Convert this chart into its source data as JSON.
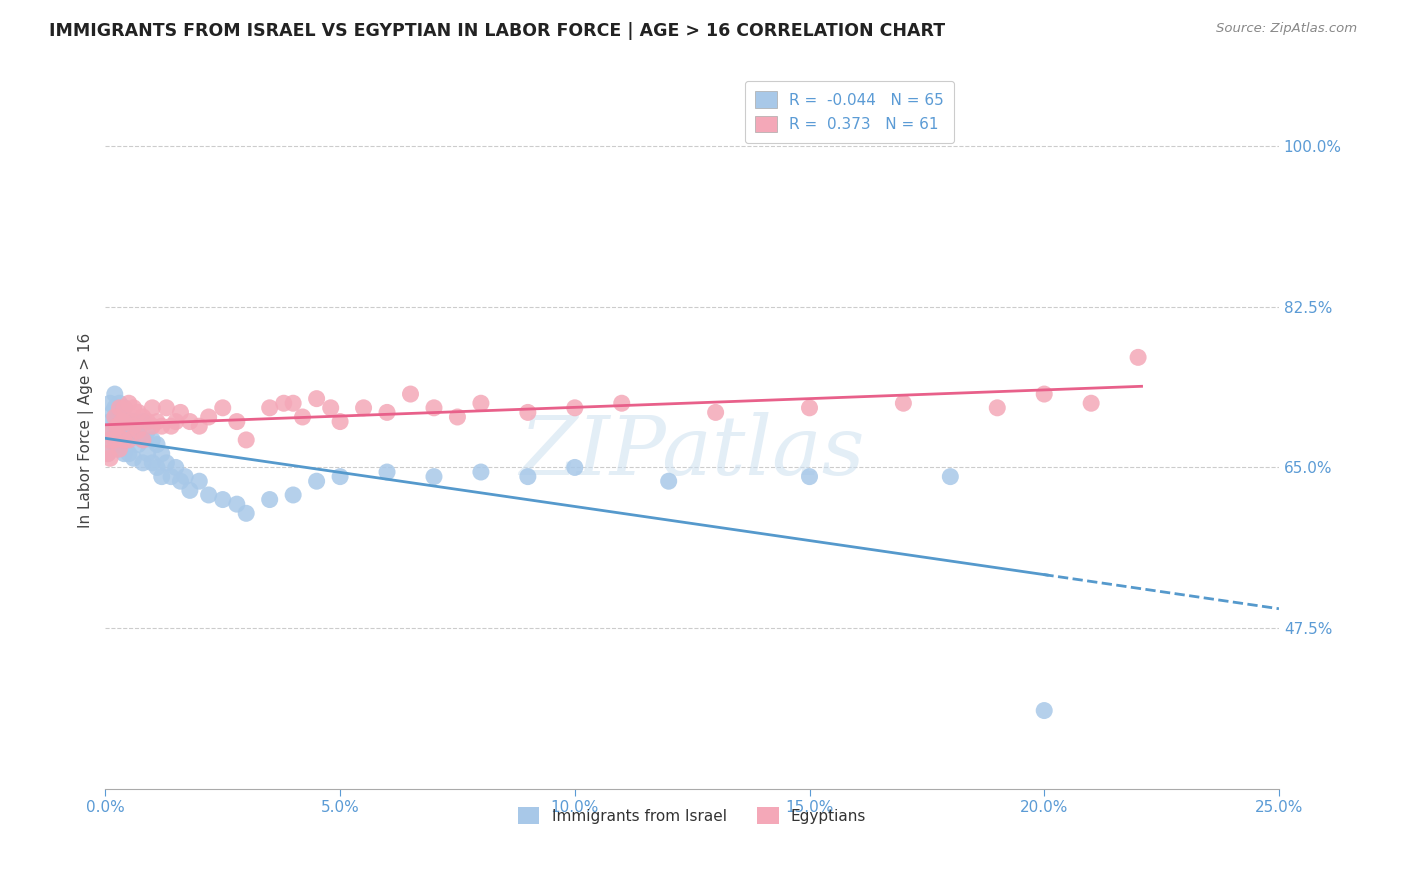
{
  "title": "IMMIGRANTS FROM ISRAEL VS EGYPTIAN IN LABOR FORCE | AGE > 16 CORRELATION CHART",
  "source": "Source: ZipAtlas.com",
  "ylabel": "In Labor Force | Age > 16",
  "yticks": [
    "47.5%",
    "65.0%",
    "82.5%",
    "100.0%"
  ],
  "ytick_values": [
    0.475,
    0.65,
    0.825,
    1.0
  ],
  "xmin": 0.0,
  "xmax": 0.25,
  "ymin": 0.3,
  "ymax": 1.08,
  "israel_color": "#a8c8e8",
  "egypt_color": "#f4a8b8",
  "israel_line_color": "#5599cc",
  "egypt_line_color": "#e8608a",
  "israel_R": -0.044,
  "israel_N": 65,
  "egypt_R": 0.373,
  "egypt_N": 61,
  "watermark": "ZIPatlas",
  "legend_label_israel": "Immigrants from Israel",
  "legend_label_egypt": "Egyptians",
  "israel_x": [
    0.0005,
    0.001,
    0.001,
    0.001,
    0.0015,
    0.0015,
    0.002,
    0.002,
    0.002,
    0.002,
    0.0025,
    0.0025,
    0.003,
    0.003,
    0.003,
    0.003,
    0.0035,
    0.004,
    0.004,
    0.004,
    0.004,
    0.0045,
    0.005,
    0.005,
    0.005,
    0.006,
    0.006,
    0.006,
    0.007,
    0.007,
    0.008,
    0.008,
    0.008,
    0.009,
    0.009,
    0.01,
    0.01,
    0.011,
    0.011,
    0.012,
    0.012,
    0.013,
    0.014,
    0.015,
    0.016,
    0.017,
    0.018,
    0.02,
    0.022,
    0.025,
    0.028,
    0.03,
    0.035,
    0.04,
    0.045,
    0.05,
    0.06,
    0.07,
    0.08,
    0.09,
    0.1,
    0.12,
    0.15,
    0.18,
    0.2
  ],
  "israel_y": [
    0.665,
    0.72,
    0.7,
    0.68,
    0.71,
    0.69,
    0.73,
    0.715,
    0.7,
    0.685,
    0.695,
    0.67,
    0.72,
    0.71,
    0.695,
    0.675,
    0.7,
    0.715,
    0.7,
    0.685,
    0.665,
    0.69,
    0.7,
    0.685,
    0.665,
    0.7,
    0.685,
    0.66,
    0.695,
    0.675,
    0.7,
    0.68,
    0.655,
    0.69,
    0.665,
    0.68,
    0.655,
    0.675,
    0.65,
    0.665,
    0.64,
    0.655,
    0.64,
    0.65,
    0.635,
    0.64,
    0.625,
    0.635,
    0.62,
    0.615,
    0.61,
    0.6,
    0.615,
    0.62,
    0.635,
    0.64,
    0.645,
    0.64,
    0.645,
    0.64,
    0.65,
    0.635,
    0.64,
    0.64,
    0.385
  ],
  "egypt_x": [
    0.0005,
    0.001,
    0.001,
    0.0015,
    0.002,
    0.002,
    0.0025,
    0.003,
    0.003,
    0.003,
    0.0035,
    0.004,
    0.004,
    0.004,
    0.005,
    0.005,
    0.005,
    0.006,
    0.006,
    0.007,
    0.007,
    0.008,
    0.008,
    0.009,
    0.01,
    0.01,
    0.011,
    0.012,
    0.013,
    0.014,
    0.015,
    0.016,
    0.018,
    0.02,
    0.022,
    0.025,
    0.028,
    0.03,
    0.035,
    0.038,
    0.04,
    0.042,
    0.045,
    0.048,
    0.05,
    0.055,
    0.06,
    0.065,
    0.07,
    0.075,
    0.08,
    0.09,
    0.1,
    0.11,
    0.13,
    0.15,
    0.17,
    0.19,
    0.2,
    0.21,
    0.22
  ],
  "egypt_y": [
    0.665,
    0.68,
    0.66,
    0.69,
    0.705,
    0.68,
    0.695,
    0.715,
    0.695,
    0.67,
    0.7,
    0.715,
    0.7,
    0.68,
    0.72,
    0.7,
    0.68,
    0.715,
    0.695,
    0.71,
    0.69,
    0.705,
    0.68,
    0.7,
    0.695,
    0.715,
    0.7,
    0.695,
    0.715,
    0.695,
    0.7,
    0.71,
    0.7,
    0.695,
    0.705,
    0.715,
    0.7,
    0.68,
    0.715,
    0.72,
    0.72,
    0.705,
    0.725,
    0.715,
    0.7,
    0.715,
    0.71,
    0.73,
    0.715,
    0.705,
    0.72,
    0.71,
    0.715,
    0.72,
    0.71,
    0.715,
    0.72,
    0.715,
    0.73,
    0.72,
    0.77
  ]
}
